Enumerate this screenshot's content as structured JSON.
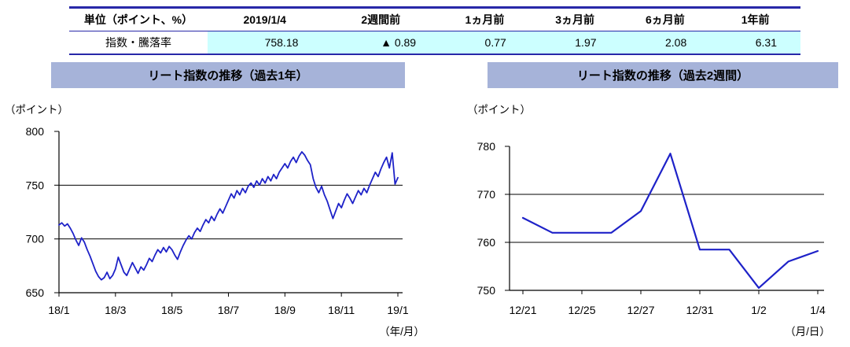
{
  "table": {
    "headers": [
      "単位（ポイント、%）",
      "2019/1/4",
      "2週間前",
      "1ヵ月前",
      "3ヵ月前",
      "6ヵ月前",
      "1年前"
    ],
    "row_label": "指数・騰落率",
    "values": [
      "758.18",
      "▲ 0.89",
      "0.77",
      "1.97",
      "2.08",
      "6.31"
    ],
    "highlight_color": "#ccffff",
    "border_color": "#2828a8"
  },
  "chart_data": [
    {
      "type": "line",
      "title": "リート指数の推移（過去1年）",
      "y_unit": "（ポイント）",
      "x_unit": "（年/月）",
      "y_min": 650,
      "y_max": 800,
      "y_ticks": [
        650,
        700,
        750,
        800
      ],
      "x_tick_labels": [
        "18/1",
        "18/3",
        "18/5",
        "18/7",
        "18/9",
        "18/11",
        "19/1"
      ],
      "x_tick_indices": [
        0,
        20,
        40,
        60,
        80,
        100,
        120
      ],
      "line_color": "#1e22c8",
      "line_width": 1.8,
      "values": [
        713,
        715,
        712,
        714,
        710,
        705,
        699,
        694,
        701,
        697,
        690,
        684,
        677,
        670,
        665,
        662,
        664,
        669,
        663,
        666,
        672,
        683,
        676,
        669,
        666,
        672,
        678,
        673,
        668,
        674,
        671,
        676,
        682,
        679,
        685,
        690,
        687,
        692,
        688,
        693,
        690,
        685,
        681,
        688,
        694,
        699,
        703,
        700,
        706,
        710,
        707,
        713,
        718,
        715,
        721,
        717,
        723,
        728,
        724,
        730,
        736,
        742,
        738,
        745,
        741,
        747,
        743,
        749,
        752,
        748,
        754,
        750,
        756,
        752,
        758,
        754,
        760,
        756,
        762,
        766,
        770,
        766,
        772,
        776,
        771,
        777,
        781,
        778,
        773,
        769,
        756,
        748,
        743,
        749,
        741,
        735,
        727,
        719,
        726,
        733,
        729,
        736,
        742,
        738,
        733,
        739,
        745,
        741,
        747,
        743,
        750,
        756,
        762,
        758,
        765,
        771,
        776,
        766,
        780,
        751,
        757
      ]
    },
    {
      "type": "line",
      "title": "リート指数の推移（過去2週間）",
      "y_unit": "（ポイント）",
      "x_unit": "（月/日）",
      "y_min": 750,
      "y_max": 780,
      "y_ticks": [
        750,
        760,
        770,
        780
      ],
      "x_tick_labels": [
        "12/21",
        "12/25",
        "12/27",
        "12/31",
        "1/2",
        "1/4"
      ],
      "x_tick_indices": [
        0,
        2,
        4,
        6,
        8,
        10
      ],
      "dates": [
        "12/21",
        "12/24",
        "12/25",
        "12/26",
        "12/27",
        "12/28",
        "12/31",
        "1/1",
        "1/2",
        "1/3",
        "1/4"
      ],
      "line_color": "#1e22c8",
      "line_width": 2.2,
      "values": [
        765.1,
        762.0,
        762.0,
        762.0,
        766.5,
        778.5,
        758.5,
        758.5,
        750.5,
        756.0,
        758.2
      ]
    }
  ]
}
